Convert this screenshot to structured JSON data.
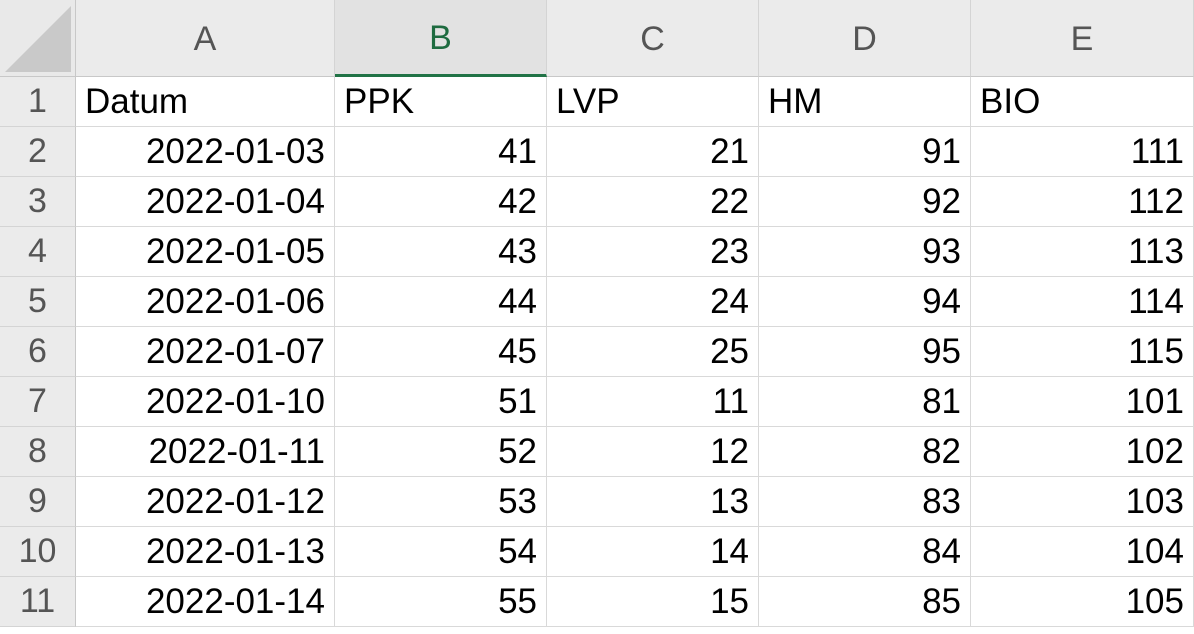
{
  "columns": [
    "A",
    "B",
    "C",
    "D",
    "E"
  ],
  "selected_column": "B",
  "row_numbers": [
    "1",
    "2",
    "3",
    "4",
    "5",
    "6",
    "7",
    "8",
    "9",
    "10",
    "11"
  ],
  "header_row": [
    "Datum",
    "PPK",
    "LVP",
    "HM",
    "BIO"
  ],
  "rows": [
    [
      "2022-01-03",
      "41",
      "21",
      "91",
      "111"
    ],
    [
      "2022-01-04",
      "42",
      "22",
      "92",
      "112"
    ],
    [
      "2022-01-05",
      "43",
      "23",
      "93",
      "113"
    ],
    [
      "2022-01-06",
      "44",
      "24",
      "94",
      "114"
    ],
    [
      "2022-01-07",
      "45",
      "25",
      "95",
      "115"
    ],
    [
      "2022-01-10",
      "51",
      "11",
      "81",
      "101"
    ],
    [
      "2022-01-11",
      "52",
      "12",
      "82",
      "102"
    ],
    [
      "2022-01-12",
      "53",
      "13",
      "83",
      "103"
    ],
    [
      "2022-01-13",
      "54",
      "14",
      "84",
      "104"
    ],
    [
      "2022-01-14",
      "55",
      "15",
      "85",
      "105"
    ]
  ],
  "colors": {
    "selected_header_text": "#1e6b40",
    "selected_header_underline": "#217346",
    "header_background": "#ebebeb"
  }
}
